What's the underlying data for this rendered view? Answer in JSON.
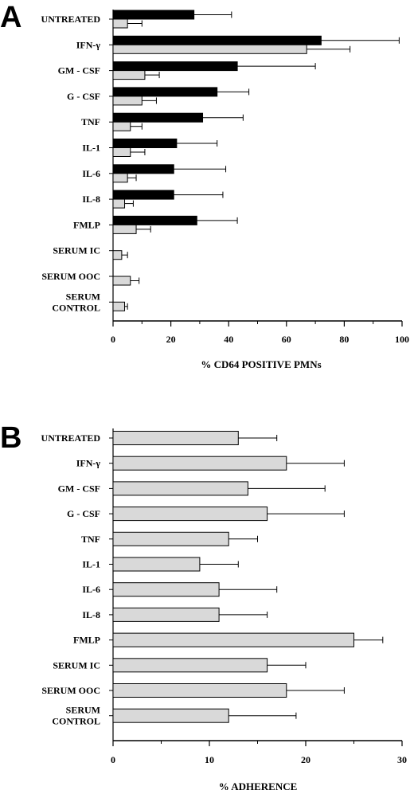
{
  "chart_data": [
    {
      "type": "bar",
      "orientation": "horizontal",
      "panel": "A",
      "categories": [
        "UNTREATED",
        "IFN-γ",
        "GM - CSF",
        "G - CSF",
        "TNF",
        "IL-1",
        "IL-6",
        "IL-8",
        "FMLP",
        "SERUM IC",
        "SERUM OOC",
        "SERUM CONTROL"
      ],
      "category_lines": [
        [
          "UNTREATED"
        ],
        [
          "IFN-γ"
        ],
        [
          "GM - CSF"
        ],
        [
          "G - CSF"
        ],
        [
          "TNF"
        ],
        [
          "IL-1"
        ],
        [
          "IL-6"
        ],
        [
          "IL-8"
        ],
        [
          "FMLP"
        ],
        [
          "SERUM IC"
        ],
        [
          "SERUM OOC"
        ],
        [
          "SERUM",
          "CONTROL"
        ]
      ],
      "series": [
        {
          "color": "#000000",
          "values": [
            28,
            72,
            43,
            36,
            31,
            22,
            21,
            21,
            29,
            null,
            null,
            null
          ],
          "errors": [
            13,
            27,
            27,
            11,
            14,
            14,
            18,
            17,
            14,
            null,
            null,
            null
          ]
        },
        {
          "color": "#d9d9d9",
          "values": [
            5,
            67,
            11,
            10,
            6,
            6,
            5,
            4,
            8,
            3,
            6,
            4
          ],
          "errors": [
            5,
            15,
            5,
            5,
            4,
            5,
            3,
            3,
            5,
            2,
            3,
            1
          ]
        }
      ],
      "xlim": [
        0,
        100
      ],
      "xticks": [
        "0",
        "20",
        "40",
        "60",
        "80",
        "100"
      ],
      "xlabel": "% CD64 POSITIVE PMNs",
      "grid": false
    },
    {
      "type": "bar",
      "orientation": "horizontal",
      "panel": "B",
      "categories": [
        "UNTREATED",
        "IFN-γ",
        "GM - CSF",
        "G - CSF",
        "TNF",
        "IL-1",
        "IL-6",
        "IL-8",
        "FMLP",
        "SERUM IC",
        "SERUM OOC",
        "SERUM CONTROL"
      ],
      "category_lines": [
        [
          "UNTREATED"
        ],
        [
          "IFN-γ"
        ],
        [
          "GM - CSF"
        ],
        [
          "G - CSF"
        ],
        [
          "TNF"
        ],
        [
          "IL-1"
        ],
        [
          "IL-6"
        ],
        [
          "IL-8"
        ],
        [
          "FMLP"
        ],
        [
          "SERUM IC"
        ],
        [
          "SERUM OOC"
        ],
        [
          "SERUM",
          "CONTROL"
        ]
      ],
      "series": [
        {
          "color": "#d9d9d9",
          "values": [
            13,
            18,
            14,
            16,
            12,
            9,
            11,
            11,
            25,
            16,
            18,
            12
          ],
          "errors": [
            4,
            6,
            8,
            8,
            3,
            4,
            6,
            5,
            3,
            4,
            6,
            7
          ]
        }
      ],
      "xlim": [
        0,
        30
      ],
      "xticks": [
        "0",
        "10",
        "20",
        "30"
      ],
      "xlabel": "% ADHERENCE",
      "grid": false
    }
  ]
}
